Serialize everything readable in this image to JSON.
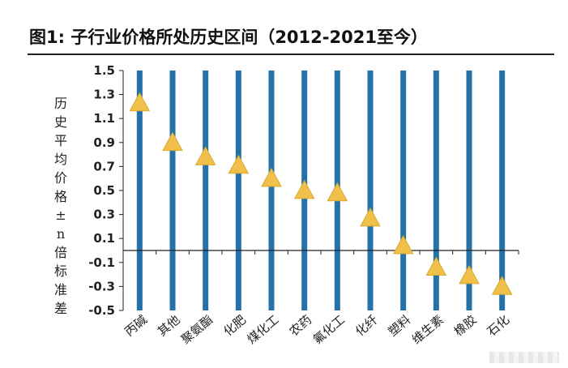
{
  "title": "图1:  子行业价格所处历史区间（2012-2021至今）",
  "colors": {
    "bar": "#2472a8",
    "marker": "#f0c04a",
    "marker_stroke": "#d9a92e",
    "axis": "#222222"
  },
  "chart_data": {
    "type": "scatter",
    "title": "图1:  子行业价格所处历史区间（2012-2021至今）",
    "ylabel": "历史平均价格±n倍标准差",
    "xlabel": "",
    "ylim": [
      -0.5,
      1.5
    ],
    "yticks": [
      "1.5",
      "1.3",
      "1.1",
      "0.9",
      "0.7",
      "0.5",
      "0.3",
      "0.1",
      "-0.1",
      "-0.3",
      "-0.5"
    ],
    "grid": false,
    "legend": "none",
    "categories": [
      "丙碱",
      "其他",
      "聚氨酯",
      "化肥",
      "煤化工",
      "农药",
      "氟化工",
      "化纤",
      "塑料",
      "维生素",
      "橡胶",
      "石化"
    ],
    "range_bars": {
      "low": -0.5,
      "high": 1.5
    },
    "values": [
      1.22,
      0.89,
      0.77,
      0.7,
      0.59,
      0.49,
      0.47,
      0.26,
      0.03,
      -0.15,
      -0.22,
      -0.31
    ]
  }
}
